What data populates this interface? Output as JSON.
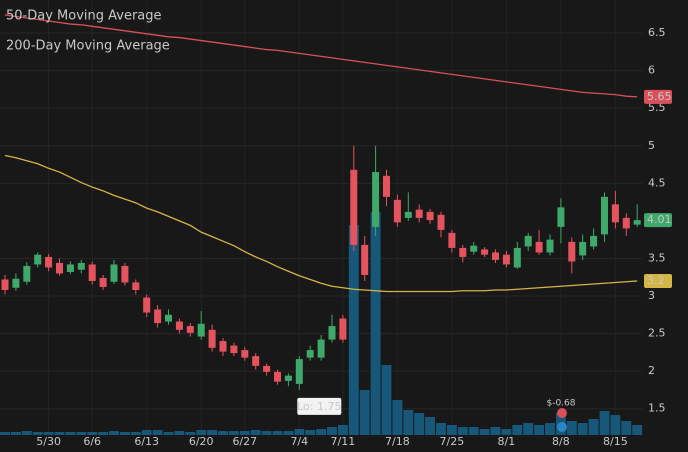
{
  "chart_data": {
    "type": "candlestick",
    "categories": [
      null,
      null,
      null,
      null,
      "5/30",
      null,
      null,
      null,
      "6/6",
      null,
      null,
      null,
      null,
      "6/13",
      null,
      null,
      null,
      null,
      "6/20",
      null,
      null,
      null,
      "6/27",
      null,
      null,
      null,
      null,
      "7/4",
      null,
      null,
      null,
      "7/11",
      null,
      null,
      null,
      null,
      "7/18",
      null,
      null,
      null,
      null,
      "7/25",
      null,
      null,
      null,
      null,
      "8/1",
      null,
      null,
      null,
      null,
      "8/8",
      null,
      null,
      null,
      null,
      "8/15",
      null,
      null
    ],
    "open": [
      3.22,
      3.11,
      3.19,
      3.42,
      3.52,
      3.44,
      3.32,
      3.35,
      3.42,
      3.24,
      3.19,
      3.4,
      3.18,
      2.98,
      2.82,
      2.66,
      2.66,
      2.6,
      2.46,
      2.55,
      2.4,
      2.34,
      2.28,
      2.2,
      2.07,
      1.99,
      1.87,
      1.83,
      2.18,
      2.18,
      2.42,
      2.7,
      4.68,
      3.68,
      3.92,
      4.6,
      4.28,
      4.04,
      4.15,
      4.12,
      4.08,
      3.84,
      3.64,
      3.59,
      3.62,
      3.58,
      3.55,
      3.38,
      3.66,
      3.72,
      3.58,
      3.92,
      3.72,
      3.54,
      3.66,
      3.82,
      4.22,
      4.04,
      3.95
    ],
    "high": [
      3.28,
      3.3,
      3.45,
      3.58,
      3.56,
      3.5,
      3.46,
      3.48,
      3.46,
      3.28,
      3.48,
      3.44,
      3.22,
      3.02,
      2.88,
      2.82,
      2.7,
      2.64,
      2.8,
      2.62,
      2.44,
      2.38,
      2.32,
      2.24,
      2.1,
      2.02,
      1.97,
      2.2,
      2.34,
      2.48,
      2.75,
      2.75,
      5.0,
      3.8,
      5.0,
      4.68,
      4.35,
      4.38,
      4.22,
      4.16,
      4.12,
      3.88,
      3.68,
      3.72,
      3.65,
      3.62,
      3.6,
      3.72,
      3.84,
      3.88,
      3.82,
      4.3,
      3.78,
      3.82,
      3.9,
      4.38,
      4.4,
      4.1,
      4.22
    ],
    "low": [
      3.02,
      3.07,
      3.15,
      3.38,
      3.33,
      3.27,
      3.29,
      3.3,
      3.15,
      3.08,
      3.16,
      3.14,
      3.02,
      2.72,
      2.58,
      2.62,
      2.5,
      2.46,
      2.42,
      2.26,
      2.2,
      2.2,
      2.14,
      2.02,
      1.94,
      1.82,
      1.8,
      1.75,
      2.14,
      2.14,
      2.38,
      2.38,
      3.6,
      3.2,
      3.8,
      4.2,
      3.92,
      4.0,
      3.98,
      3.96,
      3.78,
      3.58,
      3.45,
      3.55,
      3.52,
      3.44,
      3.38,
      3.36,
      3.6,
      3.55,
      3.54,
      3.7,
      3.3,
      3.48,
      3.62,
      3.72,
      3.9,
      3.8,
      3.92
    ],
    "close": [
      3.08,
      3.23,
      3.4,
      3.55,
      3.38,
      3.3,
      3.42,
      3.44,
      3.2,
      3.12,
      3.42,
      3.18,
      3.08,
      2.78,
      2.64,
      2.75,
      2.55,
      2.51,
      2.63,
      2.31,
      2.26,
      2.24,
      2.18,
      2.07,
      1.99,
      1.86,
      1.94,
      2.16,
      2.28,
      2.42,
      2.6,
      2.42,
      3.68,
      3.28,
      4.65,
      4.32,
      3.98,
      4.12,
      4.04,
      4.01,
      3.88,
      3.64,
      3.52,
      3.67,
      3.55,
      3.48,
      3.42,
      3.64,
      3.8,
      3.58,
      3.75,
      4.18,
      3.46,
      3.72,
      3.8,
      4.32,
      3.98,
      3.9,
      4.01
    ],
    "volume": [
      3,
      3,
      4,
      3,
      3,
      3,
      3,
      3,
      3,
      3,
      4,
      3,
      3,
      5,
      5,
      3,
      4,
      3,
      5,
      5,
      4,
      4,
      4,
      5,
      4,
      4,
      4,
      6,
      5,
      6,
      8,
      10,
      210,
      45,
      223,
      70,
      35,
      25,
      22,
      18,
      12,
      10,
      8,
      8,
      6,
      8,
      6,
      10,
      12,
      10,
      12,
      22,
      14,
      12,
      16,
      24,
      20,
      14,
      10
    ],
    "vlim": [
      0,
      250
    ],
    "series": [
      {
        "name": "50-Day Moving Average",
        "color": "#d6b547",
        "values": [
          4.87,
          4.84,
          4.8,
          4.76,
          4.7,
          4.65,
          4.58,
          4.51,
          4.45,
          4.4,
          4.34,
          4.29,
          4.24,
          4.17,
          4.12,
          4.06,
          4.0,
          3.94,
          3.85,
          3.79,
          3.73,
          3.67,
          3.59,
          3.52,
          3.46,
          3.39,
          3.33,
          3.27,
          3.22,
          3.17,
          3.13,
          3.11,
          3.09,
          3.08,
          3.07,
          3.06,
          3.06,
          3.06,
          3.06,
          3.06,
          3.06,
          3.06,
          3.07,
          3.07,
          3.07,
          3.08,
          3.08,
          3.09,
          3.1,
          3.11,
          3.12,
          3.13,
          3.14,
          3.15,
          3.16,
          3.17,
          3.18,
          3.19,
          3.2
        ]
      },
      {
        "name": "200-Day Moving Average",
        "color": "#d9505a",
        "values": [
          6.74,
          6.72,
          6.7,
          6.68,
          6.66,
          6.64,
          6.62,
          6.61,
          6.59,
          6.57,
          6.55,
          6.53,
          6.51,
          6.49,
          6.47,
          6.45,
          6.44,
          6.42,
          6.4,
          6.38,
          6.36,
          6.34,
          6.32,
          6.3,
          6.28,
          6.27,
          6.25,
          6.23,
          6.21,
          6.19,
          6.17,
          6.15,
          6.13,
          6.11,
          6.09,
          6.07,
          6.05,
          6.03,
          6.01,
          5.99,
          5.97,
          5.95,
          5.93,
          5.91,
          5.89,
          5.87,
          5.85,
          5.83,
          5.81,
          5.79,
          5.77,
          5.75,
          5.73,
          5.71,
          5.7,
          5.69,
          5.68,
          5.66,
          5.65
        ]
      }
    ],
    "ylim": [
      1.15,
      6.94
    ],
    "yticks": [
      1.5,
      2,
      2.5,
      3,
      3.5,
      4.5,
      5,
      5.5,
      6,
      6.5
    ],
    "grid": true,
    "up_color": "#3fa96b",
    "down_color": "#e5545e",
    "volume_color": "#17577a",
    "annotations": [
      {
        "text": "Lo: 1.75"
      },
      {
        "text": "$-0.68"
      }
    ]
  }
}
